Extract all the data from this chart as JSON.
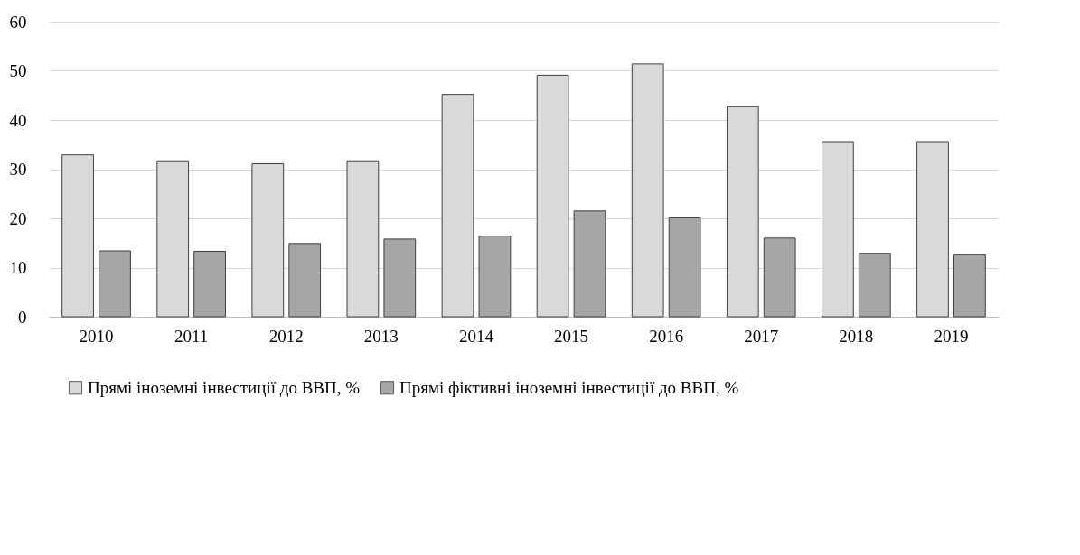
{
  "chart_data": {
    "type": "bar",
    "categories": [
      "2010",
      "2011",
      "2012",
      "2013",
      "2014",
      "2015",
      "2016",
      "2017",
      "2018",
      "2019"
    ],
    "series": [
      {
        "name": "Прямі іноземні інвестиції до ВВП, %",
        "color": "#d9d9d9",
        "values": [
          32.9,
          31.7,
          31.1,
          31.7,
          45.2,
          49.1,
          51.4,
          42.7,
          35.6,
          35.6
        ]
      },
      {
        "name": "Прямі фіктивні іноземні інвестиції до ВВП, %",
        "color": "#a6a6a6",
        "values": [
          13.4,
          13.3,
          14.9,
          15.8,
          16.4,
          21.5,
          20.1,
          16.0,
          12.9,
          12.6
        ]
      }
    ],
    "ylim": [
      0,
      60
    ],
    "yticks": [
      0,
      10,
      20,
      30,
      40,
      50,
      60
    ],
    "grid": "y",
    "legend": "bottom"
  }
}
